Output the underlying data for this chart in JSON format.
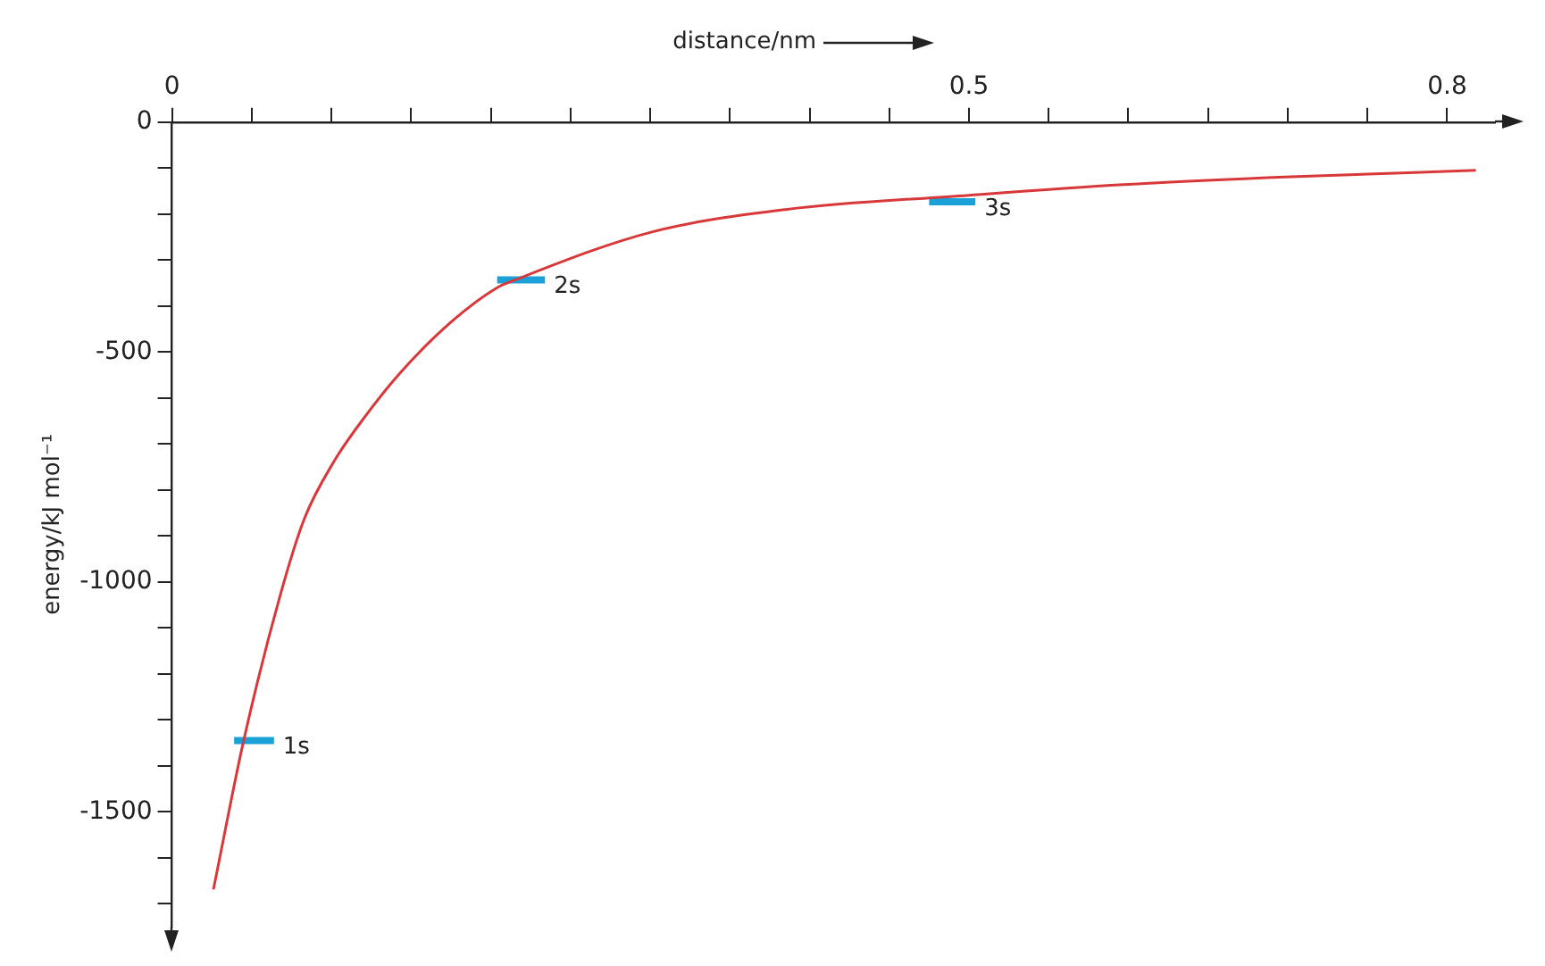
{
  "chart_data": {
    "type": "line",
    "xlabel": "distance/nm",
    "ylabel": "energy/kJ mol⁻¹",
    "xlim": [
      0,
      0.83
    ],
    "ylim": [
      -1750,
      0
    ],
    "xticks": [
      0,
      {
        "value": 0.05,
        "label": null
      },
      {
        "value": 0.1,
        "label": null
      },
      {
        "value": 0.15,
        "label": null
      },
      {
        "value": 0.2,
        "label": null
      },
      {
        "value": 0.25,
        "label": null
      },
      {
        "value": 0.3,
        "label": null
      },
      {
        "value": 0.35,
        "label": null
      },
      {
        "value": 0.4,
        "label": null
      },
      {
        "value": 0.45,
        "label": null
      },
      0.5,
      {
        "value": 0.55,
        "label": null
      },
      {
        "value": 0.6,
        "label": null
      },
      {
        "value": 0.65,
        "label": null
      },
      {
        "value": 0.7,
        "label": null
      },
      {
        "value": 0.75,
        "label": null
      },
      0.8
    ],
    "yticks": [
      0,
      {
        "value": -100,
        "label": null
      },
      {
        "value": -200,
        "label": null
      },
      {
        "value": -300,
        "label": null
      },
      {
        "value": -400,
        "label": null
      },
      -500,
      {
        "value": -600,
        "label": null
      },
      {
        "value": -700,
        "label": null
      },
      {
        "value": -800,
        "label": null
      },
      {
        "value": -900,
        "label": null
      },
      -1000,
      {
        "value": -1100,
        "label": null
      },
      {
        "value": -1200,
        "label": null
      },
      {
        "value": -1300,
        "label": null
      },
      {
        "value": -1400,
        "label": null
      },
      -1500,
      {
        "value": -1600,
        "label": null
      },
      {
        "value": -1700,
        "label": null
      }
    ],
    "grid": false,
    "series": [
      {
        "color": "#d9383a",
        "x": [
          0.026,
          0.045,
          0.068,
          0.083,
          0.102,
          0.121,
          0.143,
          0.174,
          0.204,
          0.214,
          0.301,
          0.385,
          0.5,
          0.597,
          0.702,
          0.818
        ],
        "values": [
          -1669,
          -1345,
          -1028,
          -863,
          -736,
          -641,
          -546,
          -438,
          -360,
          -345,
          -239,
          -190,
          -159,
          -136,
          -119,
          -105
        ]
      },
      {
        "name": "1s",
        "color": "#1ba1d8",
        "x": [
          0.039,
          0.064
        ],
        "values": [
          -1345,
          -1345
        ]
      },
      {
        "name": "2s",
        "color": "#1ba1d8",
        "x": [
          0.204,
          0.234
        ],
        "values": [
          -343,
          -343
        ]
      },
      {
        "name": "3s",
        "color": "#1ba1d8",
        "x": [
          0.475,
          0.504
        ],
        "values": [
          -173,
          -173
        ]
      }
    ]
  }
}
